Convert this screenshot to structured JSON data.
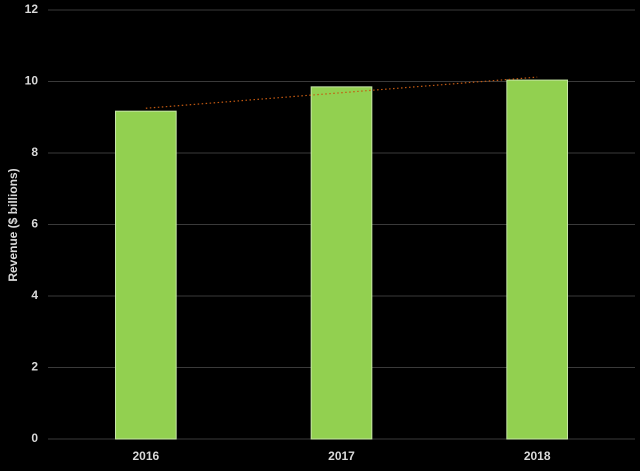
{
  "chart_data": {
    "type": "bar",
    "y_label": "Revenue ($ billions)",
    "categories": [
      "2016",
      "2017",
      "2018"
    ],
    "values": [
      9.17,
      9.85,
      10.04
    ],
    "color": "#92d050",
    "ylim": [
      0,
      12
    ],
    "yticks": [
      0,
      2,
      4,
      6,
      8,
      10,
      12
    ],
    "grid": true,
    "trendline": true,
    "trendline_color": "#c55a11"
  }
}
